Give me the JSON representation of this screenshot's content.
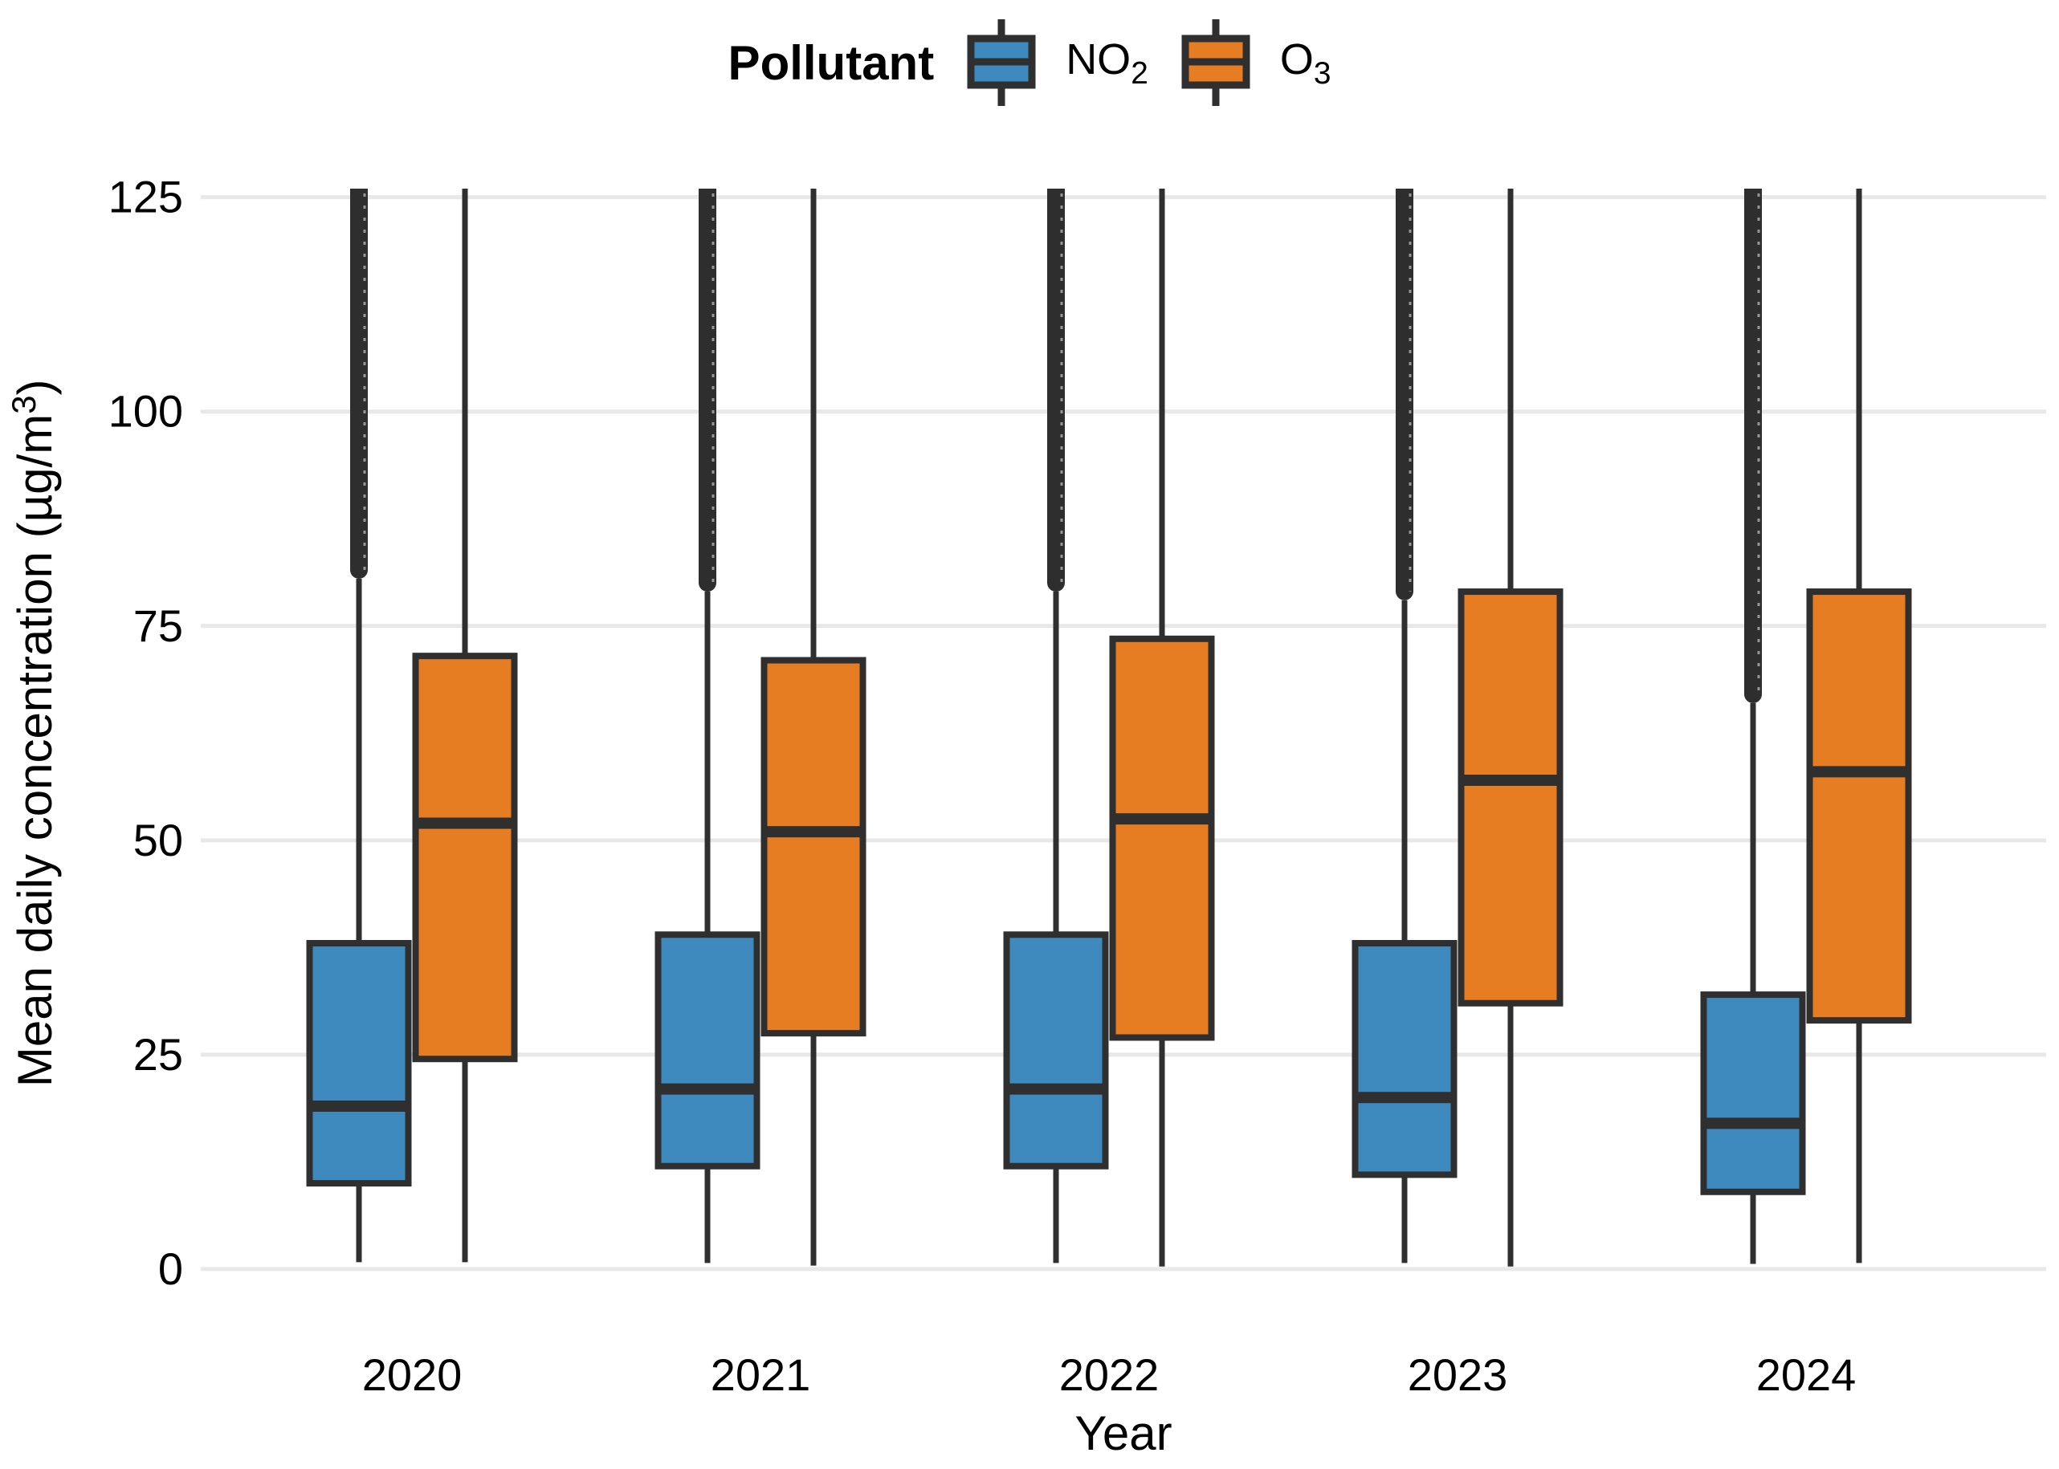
{
  "page": {
    "background": "#FFFFFF"
  },
  "legend": {
    "title": "Pollutant",
    "items": [
      {
        "id": "no2",
        "base": "NO",
        "sub": "2",
        "color": "#3E8ABE"
      },
      {
        "id": "o3",
        "base": "O",
        "sub": "3",
        "color": "#E67D23"
      }
    ]
  },
  "chart_data": {
    "type": "box",
    "title": "",
    "xlabel": "Year",
    "ylabel": "Mean daily concentration (µg/m³)",
    "ylabel_parts": {
      "pre": "Mean daily concentration (µg/m",
      "sup": "3",
      "post": ")"
    },
    "categories": [
      "2020",
      "2021",
      "2022",
      "2023",
      "2024"
    ],
    "y_ticks": [
      0,
      25,
      50,
      75,
      100,
      125
    ],
    "ylim": [
      -6,
      126
    ],
    "grid": "horizontal-only",
    "legend_position": "top-center",
    "series": [
      {
        "name": "NO2",
        "color": "#3E8ABE",
        "boxes": [
          {
            "category": "2020",
            "whisker_low": 0.8,
            "q1": 10,
            "median": 19,
            "q3": 38,
            "whisker_high": 80.5,
            "outliers_from": 80.5,
            "outliers_to": 126
          },
          {
            "category": "2021",
            "whisker_low": 0.7,
            "q1": 12,
            "median": 21,
            "q3": 39,
            "whisker_high": 79,
            "outliers_from": 79,
            "outliers_to": 126
          },
          {
            "category": "2022",
            "whisker_low": 0.7,
            "q1": 12,
            "median": 21,
            "q3": 39,
            "whisker_high": 79,
            "outliers_from": 79,
            "outliers_to": 126
          },
          {
            "category": "2023",
            "whisker_low": 0.7,
            "q1": 11,
            "median": 20,
            "q3": 38,
            "whisker_high": 78,
            "outliers_from": 78,
            "outliers_to": 126
          },
          {
            "category": "2024",
            "whisker_low": 0.6,
            "q1": 9,
            "median": 17,
            "q3": 32,
            "whisker_high": 66,
            "outliers_from": 66,
            "outliers_to": 126
          }
        ]
      },
      {
        "name": "O3",
        "color": "#E67D23",
        "boxes": [
          {
            "category": "2020",
            "whisker_low": 0.8,
            "q1": 24.5,
            "median": 52,
            "q3": 71.5,
            "whisker_high": 126,
            "clipped_top": true
          },
          {
            "category": "2021",
            "whisker_low": 0.4,
            "q1": 27.5,
            "median": 51,
            "q3": 71,
            "whisker_high": 126,
            "clipped_top": true
          },
          {
            "category": "2022",
            "whisker_low": 0.3,
            "q1": 27,
            "median": 52.5,
            "q3": 73.5,
            "whisker_high": 126,
            "clipped_top": true
          },
          {
            "category": "2023",
            "whisker_low": 0.3,
            "q1": 31,
            "median": 57,
            "q3": 79,
            "whisker_high": 126,
            "clipped_top": true
          },
          {
            "category": "2024",
            "whisker_low": 0.7,
            "q1": 29,
            "median": 58,
            "q3": 79,
            "whisker_high": 126,
            "clipped_top": true
          }
        ]
      }
    ]
  },
  "colors": {
    "box_stroke": "#2F2F2F",
    "outlier_stack": "#2E2E2E",
    "gridline": "#E8E8E8",
    "text": "#000000"
  }
}
